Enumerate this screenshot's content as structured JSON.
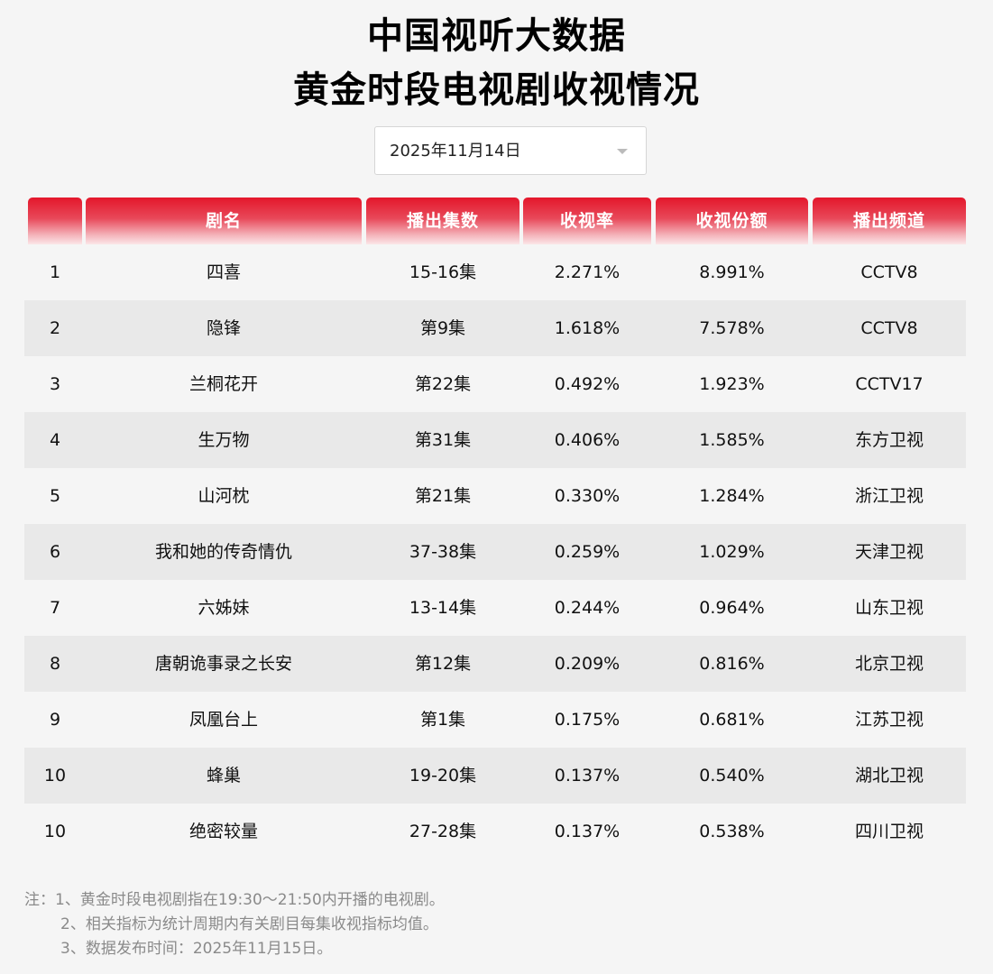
{
  "title": {
    "line1": "中国视听大数据",
    "line2": "黄金时段电视剧收视情况"
  },
  "date_select": {
    "value": "2025年11月14日",
    "icon": "chevron-down-icon"
  },
  "table": {
    "headers": [
      "",
      "剧名",
      "播出集数",
      "收视率",
      "收视份额",
      "播出频道"
    ],
    "header_color": "#e4172b",
    "rows": [
      {
        "rank": "1",
        "name": "四喜",
        "episodes": "15-16集",
        "rating": "2.271%",
        "share": "8.991%",
        "channel": "CCTV8"
      },
      {
        "rank": "2",
        "name": "隐锋",
        "episodes": "第9集",
        "rating": "1.618%",
        "share": "7.578%",
        "channel": "CCTV8"
      },
      {
        "rank": "3",
        "name": "兰桐花开",
        "episodes": "第22集",
        "rating": "0.492%",
        "share": "1.923%",
        "channel": "CCTV17"
      },
      {
        "rank": "4",
        "name": "生万物",
        "episodes": "第31集",
        "rating": "0.406%",
        "share": "1.585%",
        "channel": "东方卫视"
      },
      {
        "rank": "5",
        "name": "山河枕",
        "episodes": "第21集",
        "rating": "0.330%",
        "share": "1.284%",
        "channel": "浙江卫视"
      },
      {
        "rank": "6",
        "name": "我和她的传奇情仇",
        "episodes": "37-38集",
        "rating": "0.259%",
        "share": "1.029%",
        "channel": "天津卫视"
      },
      {
        "rank": "7",
        "name": "六姊妹",
        "episodes": "13-14集",
        "rating": "0.244%",
        "share": "0.964%",
        "channel": "山东卫视"
      },
      {
        "rank": "8",
        "name": "唐朝诡事录之长安",
        "episodes": "第12集",
        "rating": "0.209%",
        "share": "0.816%",
        "channel": "北京卫视"
      },
      {
        "rank": "9",
        "name": "凤凰台上",
        "episodes": "第1集",
        "rating": "0.175%",
        "share": "0.681%",
        "channel": "江苏卫视"
      },
      {
        "rank": "10",
        "name": "蜂巢",
        "episodes": "19-20集",
        "rating": "0.137%",
        "share": "0.540%",
        "channel": "湖北卫视"
      },
      {
        "rank": "10",
        "name": "绝密较量",
        "episodes": "27-28集",
        "rating": "0.137%",
        "share": "0.538%",
        "channel": "四川卫视"
      }
    ]
  },
  "notes": [
    "注：1、黄金时段电视剧指在19:30～21:50内开播的电视剧。",
    "2、相关指标为统计周期内有关剧目每集收视指标均值。",
    "3、数据发布时间：2025年11月15日。"
  ]
}
